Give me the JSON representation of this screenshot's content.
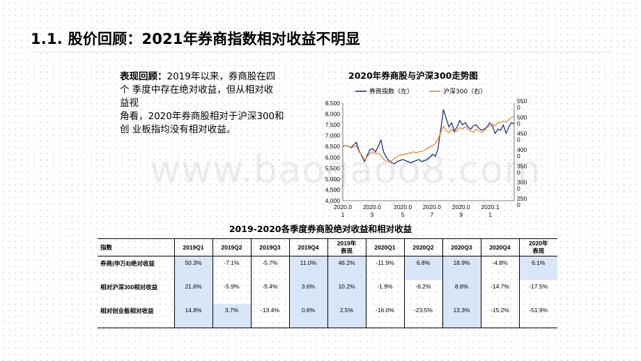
{
  "title": "1.1. 股价回顾：2021年券商指数相对收益不明显",
  "description": {
    "lead": "表现回顾：",
    "lines": [
      "2019年以来，券商股在四",
      "个 季度中存在绝对收益，但从相对收",
      "益视",
      "角看，2020年券商股相对于沪深300和",
      "创 业板指均没有相对收益。"
    ]
  },
  "watermark": "www.baogaoo8.com",
  "chart_data": {
    "type": "line",
    "title": "2020年券商股与沪深300走势图",
    "legend": [
      "券商指数（左）",
      "沪深300（右）"
    ],
    "legend_placement": "top-left",
    "y_left": {
      "min": 4000,
      "max": 8500,
      "ticks": [
        "8,500",
        "8,000",
        "7,500",
        "7,000",
        "6,500",
        "6,000",
        "5,500",
        "5,000",
        "4,500",
        "4,000"
      ]
    },
    "y_right": {
      "min": 2500,
      "max": 5500,
      "ticks": [
        "550\n0",
        "500\n0",
        "450\n0",
        "400\n0",
        "350\n0",
        "300\n0",
        "250\n0"
      ]
    },
    "x_ticks": [
      {
        "label": "2020.0\n1",
        "pos": 0
      },
      {
        "label": "2020.0\n3",
        "pos": 0.17
      },
      {
        "label": "2020.0\n5",
        "pos": 0.35
      },
      {
        "label": "2020.0\n7",
        "pos": 0.52
      },
      {
        "label": "2020.0\n9",
        "pos": 0.69
      },
      {
        "label": "2020.1\n1",
        "pos": 0.86
      }
    ],
    "series": [
      {
        "name": "券商指数（左）",
        "color": "#1f2f8a",
        "values": [
          6500,
          6550,
          6520,
          6450,
          6580,
          6700,
          6300,
          6050,
          5800,
          6100,
          6350,
          6400,
          6250,
          6500,
          6800,
          6250,
          6000,
          5850,
          5750,
          5700,
          5800,
          5850,
          5900,
          5850,
          5800,
          5750,
          5800,
          5850,
          5900,
          5800,
          5850,
          5900,
          6000,
          6150,
          6050,
          6400,
          7300,
          8200,
          7800,
          7400,
          7600,
          7200,
          7400,
          7700,
          7500,
          7600,
          7400,
          7300,
          7450,
          7500,
          7350,
          7250,
          7300,
          7400,
          7600,
          7450,
          7100,
          7300,
          7250,
          7500,
          7100,
          7400,
          7600,
          7550
        ]
      },
      {
        "name": "沪深300（右）",
        "color": "#e8872e",
        "values": [
          4150,
          4200,
          4180,
          4120,
          4150,
          4200,
          4000,
          3900,
          3750,
          3850,
          3950,
          4000,
          3950,
          3960,
          3900,
          3780,
          3720,
          3700,
          3730,
          3800,
          3870,
          3900,
          3920,
          3930,
          3950,
          3980,
          4000,
          3980,
          4000,
          4020,
          4050,
          4100,
          4150,
          4200,
          4250,
          4400,
          4600,
          4800,
          4650,
          4600,
          4700,
          4600,
          4650,
          4750,
          4700,
          4780,
          4700,
          4650,
          4600,
          4700,
          4650,
          4600,
          4650,
          4750,
          4800,
          4850,
          4800,
          4900,
          4900,
          4950,
          4920,
          5000,
          5050,
          5100
        ]
      }
    ]
  },
  "table": {
    "title": "2019-2020各季度券商股绝对收益和相对收益",
    "headers": [
      "指数",
      "2019Q1",
      "2019Q2",
      "2019Q3",
      "2019Q4",
      "2019年\n表现",
      "2020Q1",
      "2020Q2",
      "2020Q3",
      "2020Q4",
      "2020年\n表现"
    ],
    "rows": [
      {
        "label": "券商(申万Ⅱ)绝对收益",
        "values": [
          "50.3%",
          "-7.1%",
          "-5.7%",
          "11.0%",
          "46.2%",
          "-11.9%",
          "6.8%",
          "18.9%",
          "-4.8%",
          "6.1%"
        ]
      },
      {
        "label": "相对沪深300相对收益",
        "values": [
          "21.6%",
          "-5.9%",
          "-5.4%",
          "3.6%",
          "10.2%",
          "-1.9%",
          "-6.2%",
          "8.8%",
          "-14.7%",
          "-17.5%"
        ]
      },
      {
        "label": "相对创业板相对收益",
        "values": [
          "14.8%",
          "3.7%",
          "-13.4%",
          "0.6%",
          "2.5%",
          "-16.0%",
          "-23.5%",
          "13.3%",
          "-15.2%",
          "-51.9%"
        ]
      }
    ]
  },
  "colors": {
    "highlight": "#d9e6f8",
    "brokerage_line": "#1f2f8a",
    "csi300_line": "#e8872e"
  }
}
